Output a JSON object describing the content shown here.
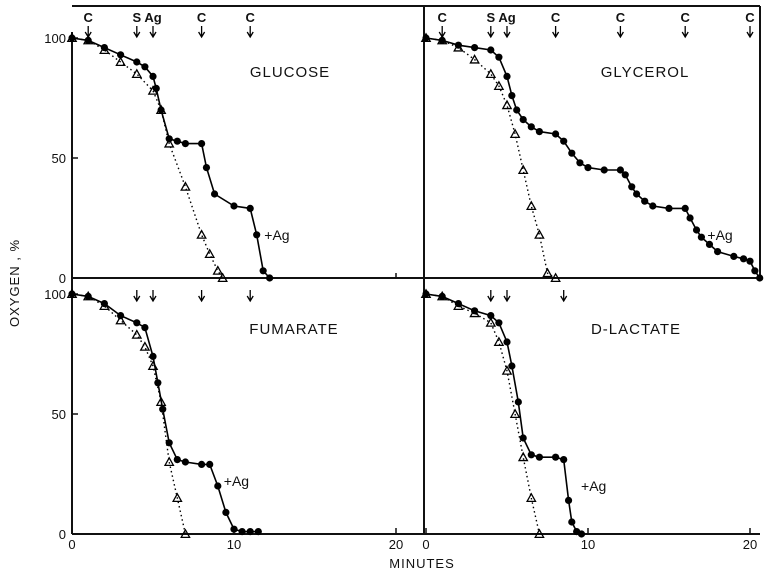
{
  "chart_data": {
    "type": "line",
    "ylabel": "OXYGEN , %",
    "xlabel": "MINUTES",
    "colors": {
      "ink": "#111111",
      "background": "#ffffff"
    },
    "panels": [
      {
        "title": "GLUCOSE",
        "xlim": [
          0,
          22
        ],
        "ylim": [
          0,
          100
        ],
        "yticks": [
          "100",
          "50",
          "0"
        ],
        "xticks": [],
        "markers": [
          {
            "x": 1,
            "label": "C"
          },
          {
            "x": 4,
            "label": "S"
          },
          {
            "x": 5,
            "label": "Ag"
          },
          {
            "x": 8,
            "label": "C"
          },
          {
            "x": 11,
            "label": "C"
          }
        ],
        "annotation": {
          "text": "+Ag",
          "x": 11.5,
          "y": 18
        },
        "series": [
          {
            "style": "solid",
            "marker": "circle",
            "x": [
              0,
              1,
              2,
              3,
              4,
              4.5,
              5,
              5.2,
              5.5,
              6,
              6.5,
              7,
              8,
              8.3,
              8.8,
              10,
              11,
              11.4,
              11.8,
              12.2
            ],
            "y": [
              100,
              99,
              96,
              93,
              90,
              88,
              84,
              79,
              70,
              58,
              57,
              56,
              56,
              46,
              35,
              30,
              29,
              18,
              3,
              0
            ]
          },
          {
            "style": "dotted",
            "marker": "triangle",
            "x": [
              0,
              1,
              2,
              3,
              4,
              5,
              5.5,
              6,
              7,
              8,
              8.5,
              9,
              9.3
            ],
            "y": [
              100,
              99,
              95,
              90,
              85,
              78,
              70,
              56,
              38,
              18,
              10,
              3,
              0
            ]
          }
        ]
      },
      {
        "title": "GLYCEROL",
        "xlim": [
          0,
          22
        ],
        "ylim": [
          0,
          100
        ],
        "yticks": [],
        "xticks": [],
        "markers": [
          {
            "x": 1,
            "label": "C"
          },
          {
            "x": 4,
            "label": "S"
          },
          {
            "x": 5,
            "label": "Ag"
          },
          {
            "x": 8,
            "label": "C"
          },
          {
            "x": 12,
            "label": "C"
          },
          {
            "x": 16,
            "label": "C"
          },
          {
            "x": 20,
            "label": "C"
          }
        ],
        "annotation": {
          "text": "+Ag",
          "x": 17,
          "y": 18
        },
        "series": [
          {
            "style": "solid",
            "marker": "circle",
            "x": [
              0,
              1,
              2,
              3,
              4,
              4.5,
              5,
              5.3,
              5.6,
              6,
              6.5,
              7,
              8,
              8.5,
              9,
              9.5,
              10,
              11,
              12,
              12.3,
              12.7,
              13,
              13.5,
              14,
              15,
              16,
              16.3,
              16.7,
              17,
              17.5,
              18,
              19,
              19.6,
              20,
              20.3,
              20.6
            ],
            "y": [
              100,
              99,
              97,
              96,
              95,
              92,
              84,
              76,
              70,
              66,
              63,
              61,
              60,
              57,
              52,
              48,
              46,
              45,
              45,
              43,
              38,
              35,
              32,
              30,
              29,
              29,
              25,
              20,
              17,
              14,
              11,
              9,
              8,
              7,
              3,
              0
            ]
          },
          {
            "style": "dotted",
            "marker": "triangle",
            "x": [
              0,
              1,
              2,
              3,
              4,
              4.5,
              5,
              5.5,
              6,
              6.5,
              7,
              7.5,
              8
            ],
            "y": [
              100,
              99,
              96,
              91,
              85,
              80,
              72,
              60,
              45,
              30,
              18,
              2,
              0
            ]
          }
        ]
      },
      {
        "title": "FUMARATE",
        "xlim": [
          0,
          22
        ],
        "ylim": [
          0,
          100
        ],
        "yticks": [
          "100",
          "50",
          "0"
        ],
        "xticks": [
          "0",
          "10",
          "20"
        ],
        "markers": [
          {
            "x": 4,
            "label": ""
          },
          {
            "x": 5,
            "label": ""
          },
          {
            "x": 8,
            "label": ""
          },
          {
            "x": 11,
            "label": ""
          }
        ],
        "annotation": {
          "text": "+Ag",
          "x": 9,
          "y": 22
        },
        "series": [
          {
            "style": "solid",
            "marker": "circle",
            "x": [
              0,
              1,
              2,
              3,
              4,
              4.5,
              5,
              5.3,
              5.6,
              6,
              6.5,
              7,
              8,
              8.5,
              9,
              9.5,
              10,
              10.5,
              11,
              11.5
            ],
            "y": [
              100,
              99,
              96,
              91,
              88,
              86,
              74,
              63,
              52,
              38,
              31,
              30,
              29,
              29,
              20,
              9,
              2,
              1,
              1,
              1
            ]
          },
          {
            "style": "dotted",
            "marker": "triangle",
            "x": [
              0,
              1,
              2,
              3,
              4,
              4.5,
              5,
              5.5,
              6,
              6.5,
              7
            ],
            "y": [
              100,
              99,
              95,
              89,
              83,
              78,
              70,
              55,
              30,
              15,
              0
            ]
          }
        ]
      },
      {
        "title": "D-LACTATE",
        "xlim": [
          0,
          22
        ],
        "ylim": [
          0,
          100
        ],
        "yticks": [],
        "xticks": [
          "0",
          "10",
          "20"
        ],
        "markers": [
          {
            "x": 4,
            "label": ""
          },
          {
            "x": 5,
            "label": ""
          },
          {
            "x": 8.5,
            "label": ""
          }
        ],
        "annotation": {
          "text": "+Ag",
          "x": 9.2,
          "y": 20
        },
        "series": [
          {
            "style": "solid",
            "marker": "circle",
            "x": [
              0,
              1,
              2,
              3,
              4,
              4.5,
              5,
              5.3,
              5.7,
              6,
              6.5,
              7,
              8,
              8.5,
              8.8,
              9,
              9.3,
              9.6
            ],
            "y": [
              100,
              99,
              96,
              93,
              91,
              88,
              80,
              70,
              55,
              40,
              33,
              32,
              32,
              31,
              14,
              5,
              1,
              0
            ]
          },
          {
            "style": "dotted",
            "marker": "triangle",
            "x": [
              0,
              1,
              2,
              3,
              4,
              4.5,
              5,
              5.5,
              6,
              6.5,
              7
            ],
            "y": [
              100,
              99,
              95,
              92,
              88,
              80,
              68,
              50,
              32,
              15,
              0
            ]
          }
        ]
      }
    ]
  }
}
